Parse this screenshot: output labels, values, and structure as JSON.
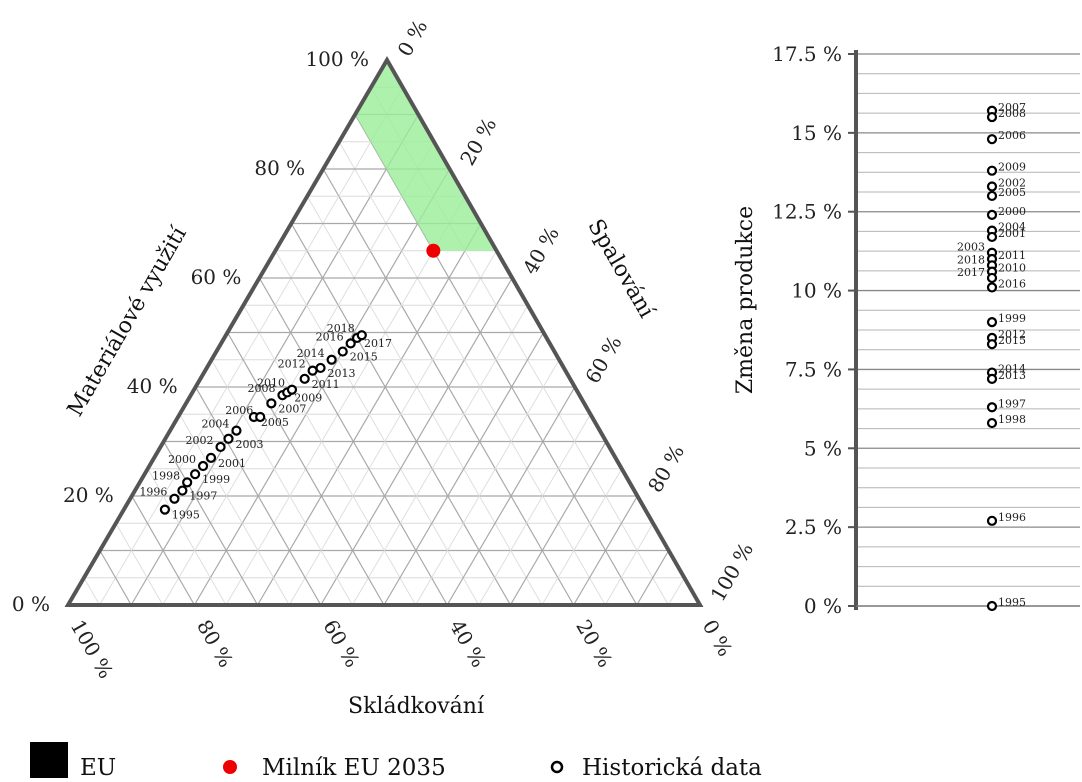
{
  "chart_data": [
    {
      "type": "ternary-scatter",
      "axes": {
        "left": {
          "label": "Materiálové využití",
          "ticks": [
            "0 %",
            "20 %",
            "40 %",
            "60 %",
            "80 %",
            "100 %"
          ]
        },
        "right": {
          "label": "Spalování",
          "ticks": [
            "0 %",
            "20 %",
            "40 %",
            "60 %",
            "80 %",
            "100 %"
          ]
        },
        "bottom": {
          "label": "Skládkování",
          "ticks": [
            "100 %",
            "80 %",
            "60 %",
            "40 %",
            "20 %",
            "0 %"
          ]
        }
      },
      "grid_step_percent": 5,
      "target_region": {
        "color": "#98ee98",
        "vertices": [
          {
            "material": 100,
            "spalovani": 0,
            "skladkovani": 0
          },
          {
            "material": 90,
            "spalovani": 0,
            "skladkovani": 10
          },
          {
            "material": 65,
            "spalovani": 25,
            "skladkovani": 10
          },
          {
            "material": 65,
            "spalovani": 35,
            "skladkovani": 0
          }
        ]
      },
      "milestone": {
        "label": "Milník EU 2035",
        "color": "#ee0000",
        "material": 65,
        "spalovani": 25,
        "skladkovani": 10
      },
      "series": [
        {
          "name": "Historická data",
          "points": [
            {
              "year": "1995",
              "material": 17.5,
              "spalovani": 6.5,
              "skladkovani": 76.0
            },
            {
              "year": "1996",
              "material": 19.5,
              "spalovani": 7.0,
              "skladkovani": 73.5
            },
            {
              "year": "1997",
              "material": 21.0,
              "spalovani": 7.5,
              "skladkovani": 71.5
            },
            {
              "year": "1998",
              "material": 22.5,
              "spalovani": 7.5,
              "skladkovani": 70.0
            },
            {
              "year": "1999",
              "material": 24.0,
              "spalovani": 8.0,
              "skladkovani": 68.0
            },
            {
              "year": "2000",
              "material": 25.5,
              "spalovani": 8.5,
              "skladkovani": 66.0
            },
            {
              "year": "2001",
              "material": 27.0,
              "spalovani": 9.0,
              "skladkovani": 64.0
            },
            {
              "year": "2002",
              "material": 29.0,
              "spalovani": 9.5,
              "skladkovani": 61.5
            },
            {
              "year": "2003",
              "material": 30.5,
              "spalovani": 10.0,
              "skladkovani": 59.5
            },
            {
              "year": "2004",
              "material": 32.0,
              "spalovani": 10.5,
              "skladkovani": 57.5
            },
            {
              "year": "2005",
              "material": 34.5,
              "spalovani": 12.0,
              "skladkovani": 53.5
            },
            {
              "year": "2006",
              "material": 34.5,
              "spalovani": 13.0,
              "skladkovani": 52.5
            },
            {
              "year": "2007",
              "material": 37.0,
              "spalovani": 13.5,
              "skladkovani": 49.5
            },
            {
              "year": "2008",
              "material": 38.5,
              "spalovani": 14.5,
              "skladkovani": 47.0
            },
            {
              "year": "2009",
              "material": 39.0,
              "spalovani": 15.0,
              "skladkovani": 46.0
            },
            {
              "year": "2010",
              "material": 39.5,
              "spalovani": 15.5,
              "skladkovani": 45.0
            },
            {
              "year": "2011",
              "material": 41.5,
              "spalovani": 16.5,
              "skladkovani": 42.0
            },
            {
              "year": "2012",
              "material": 43.0,
              "spalovani": 17.0,
              "skladkovani": 40.0
            },
            {
              "year": "2013",
              "material": 43.5,
              "spalovani": 18.0,
              "skladkovani": 38.5
            },
            {
              "year": "2014",
              "material": 45.0,
              "spalovani": 19.0,
              "skladkovani": 36.0
            },
            {
              "year": "2015",
              "material": 46.5,
              "spalovani": 20.0,
              "skladkovani": 33.5
            },
            {
              "year": "2016",
              "material": 48.0,
              "spalovani": 20.5,
              "skladkovani": 31.5
            },
            {
              "year": "2017",
              "material": 49.0,
              "spalovani": 21.0,
              "skladkovani": 30.0
            },
            {
              "year": "2018",
              "material": 49.5,
              "spalovani": 21.5,
              "skladkovani": 29.0
            }
          ]
        }
      ]
    },
    {
      "type": "scatter",
      "ylabel": "Změna produkce",
      "ylim": [
        0,
        17.5
      ],
      "yticks": [
        "0 %",
        "2.5 %",
        "5 %",
        "7.5 %",
        "10 %",
        "12.5 %",
        "15 %",
        "17.5 %"
      ],
      "grid": true,
      "points": [
        {
          "year": "2007",
          "value": 15.7
        },
        {
          "year": "2008",
          "value": 15.5
        },
        {
          "year": "2006",
          "value": 14.8
        },
        {
          "year": "2009",
          "value": 13.8
        },
        {
          "year": "2002",
          "value": 13.3
        },
        {
          "year": "2005",
          "value": 13.0
        },
        {
          "year": "2000",
          "value": 12.4
        },
        {
          "year": "2004",
          "value": 11.9
        },
        {
          "year": "2001",
          "value": 11.7
        },
        {
          "year": "2003",
          "value": 11.2
        },
        {
          "year": "2011",
          "value": 11.0
        },
        {
          "year": "2018",
          "value": 10.8
        },
        {
          "year": "2010",
          "value": 10.6
        },
        {
          "year": "2017",
          "value": 10.4
        },
        {
          "year": "2016",
          "value": 10.1
        },
        {
          "year": "1999",
          "value": 9.0
        },
        {
          "year": "2012",
          "value": 8.5
        },
        {
          "year": "2015",
          "value": 8.3
        },
        {
          "year": "2014",
          "value": 7.4
        },
        {
          "year": "2013",
          "value": 7.2
        },
        {
          "year": "1997",
          "value": 6.3
        },
        {
          "year": "1998",
          "value": 5.8
        },
        {
          "year": "1996",
          "value": 2.7
        },
        {
          "year": "1995",
          "value": 0.0
        }
      ]
    }
  ],
  "legend": [
    {
      "label": "EU",
      "marker": "square",
      "color": "#000000"
    },
    {
      "label": "Milník EU 2035",
      "marker": "dot",
      "color": "#ee0000"
    },
    {
      "label": "Historická data",
      "marker": "ring",
      "color": "#000000"
    }
  ]
}
